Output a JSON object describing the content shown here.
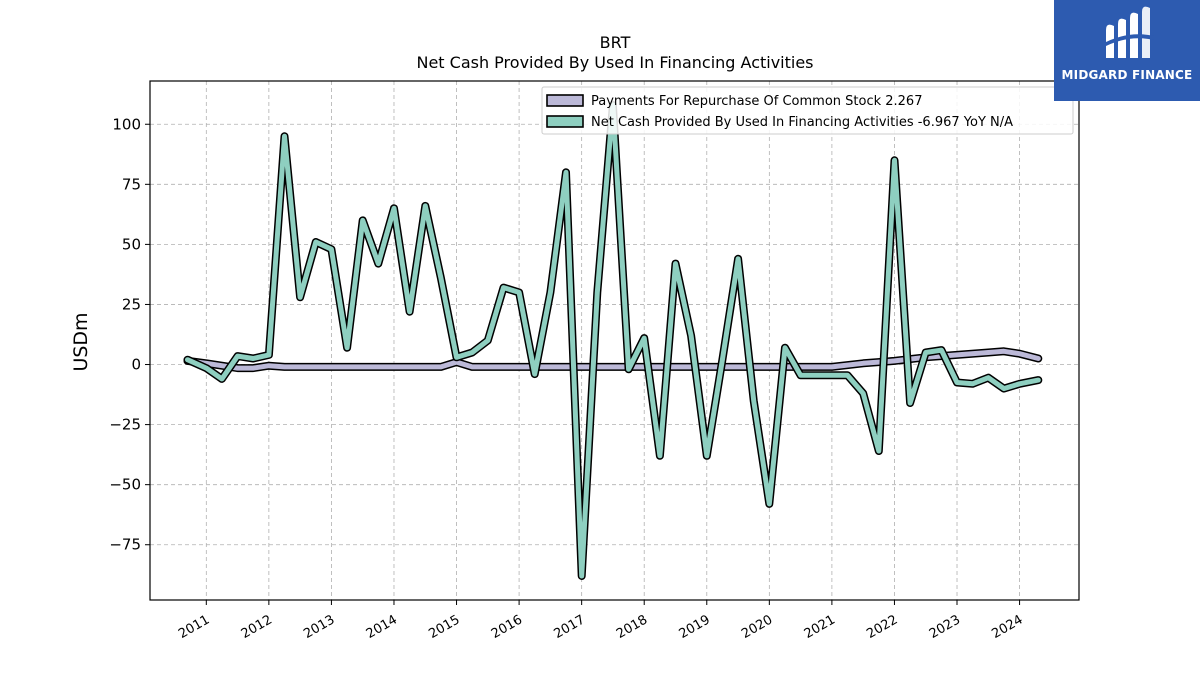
{
  "chart_data": {
    "type": "line",
    "title": "BRT",
    "subtitle": "Net Cash Provided By Used In Financing Activities",
    "ylabel": "USDm",
    "xlabel": "",
    "ylim": [
      -98,
      118
    ],
    "xlim": [
      2010.1,
      2024.95
    ],
    "yticks": [
      100,
      75,
      50,
      25,
      0,
      -25,
      -50,
      -75
    ],
    "ytick_labels": [
      "100",
      "75",
      "50",
      "25",
      "0",
      "−25",
      "−50",
      "−75"
    ],
    "xticks": [
      2011,
      2012,
      2013,
      2014,
      2015,
      2016,
      2017,
      2018,
      2019,
      2020,
      2021,
      2022,
      2023,
      2024
    ],
    "xtick_labels": [
      "2011",
      "2012",
      "2013",
      "2014",
      "2015",
      "2016",
      "2017",
      "2018",
      "2019",
      "2020",
      "2021",
      "2022",
      "2023",
      "2024"
    ],
    "grid": true,
    "legend_position": "top-right",
    "series": [
      {
        "name": "Payments For Repurchase Of Common Stock",
        "legend_value": "2.267",
        "legend_suffix": "",
        "color": "#bcb9d8",
        "x": [
          2010.7,
          2011.0,
          2011.25,
          2011.5,
          2011.75,
          2012.0,
          2012.25,
          2012.5,
          2012.75,
          2013.0,
          2013.5,
          2014.0,
          2014.5,
          2014.75,
          2015.0,
          2015.25,
          2015.5,
          2016.0,
          2016.25,
          2016.5,
          2016.75,
          2017.0,
          2017.5,
          2018.0,
          2018.5,
          2019.0,
          2019.5,
          2020.0,
          2020.5,
          2021.0,
          2021.5,
          2022.0,
          2022.5,
          2023.0,
          2023.5,
          2023.75,
          2024.0,
          2024.3
        ],
        "y": [
          1.5,
          0.5,
          -0.5,
          -1.5,
          -1.5,
          -0.5,
          -1.0,
          -1.0,
          -1.0,
          -1.0,
          -1.0,
          -1.0,
          -1.0,
          -1.0,
          1.0,
          -1.0,
          -1.0,
          -1.0,
          -1.0,
          -1.0,
          -1.0,
          -1.0,
          -1.0,
          -1.0,
          -1.0,
          -1.0,
          -1.0,
          -1.0,
          -1.0,
          -1.0,
          0.5,
          1.5,
          3.0,
          4.0,
          5.0,
          5.5,
          4.5,
          2.5
        ]
      },
      {
        "name": "Net Cash Provided By Used In Financing Activities",
        "legend_value": "-6.967",
        "legend_suffix": "YoY N/A",
        "color": "#8ecfc0",
        "x": [
          2010.7,
          2011.0,
          2011.25,
          2011.5,
          2011.75,
          2012.0,
          2012.25,
          2012.5,
          2012.75,
          2013.0,
          2013.25,
          2013.5,
          2013.75,
          2014.0,
          2014.25,
          2014.5,
          2014.75,
          2015.0,
          2015.25,
          2015.5,
          2015.75,
          2016.0,
          2016.25,
          2016.5,
          2016.75,
          2017.0,
          2017.25,
          2017.5,
          2017.75,
          2018.0,
          2018.25,
          2018.5,
          2018.75,
          2019.0,
          2019.25,
          2019.5,
          2019.75,
          2020.0,
          2020.25,
          2020.5,
          2020.75,
          2021.0,
          2021.25,
          2021.5,
          2021.75,
          2022.0,
          2022.25,
          2022.5,
          2022.75,
          2023.0,
          2023.25,
          2023.5,
          2023.75,
          2024.0,
          2024.3
        ],
        "y": [
          2.0,
          -1.5,
          -6.0,
          3.5,
          2.5,
          4.0,
          95.0,
          28.0,
          51.0,
          48.0,
          7.0,
          60.0,
          42.0,
          65.0,
          22.0,
          66.0,
          36.0,
          3.0,
          5.0,
          10.0,
          32.0,
          30.0,
          -4.0,
          30.0,
          80.0,
          -88.0,
          30.0,
          108.0,
          -2.0,
          11.0,
          -38.0,
          42.0,
          12.0,
          -38.0,
          2.0,
          44.0,
          -15.0,
          -58.0,
          7.0,
          -4.5,
          -4.5,
          -4.5,
          -4.5,
          -12.0,
          -36.0,
          85.0,
          -16.0,
          5.0,
          6.0,
          -7.5,
          -8.0,
          -5.5,
          -10.0,
          -8.0,
          -6.5
        ]
      }
    ]
  },
  "branding": {
    "logo_text": "MIDGARD FINANCE",
    "logo_color": "#2d5bb0"
  }
}
